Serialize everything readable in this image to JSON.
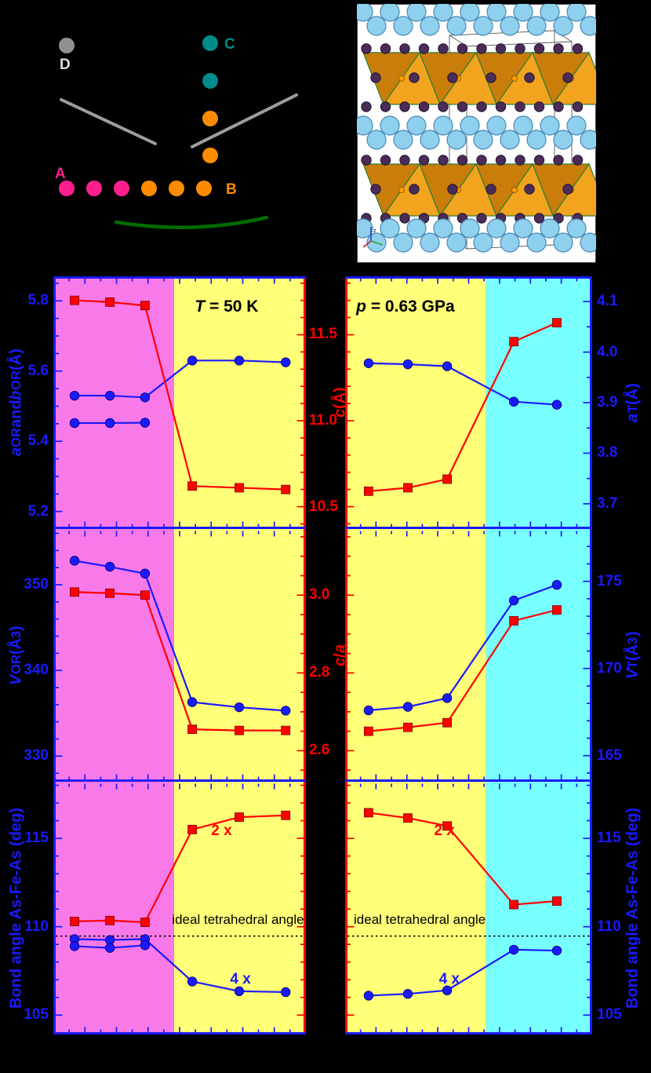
{
  "schematic": {
    "labels": {
      "A": "A",
      "B": "B",
      "C": "C",
      "D": "D"
    },
    "colors": {
      "a_dot": "#ff1f8f",
      "b_dot": "#ff8c00",
      "c_dot": "#008b8b",
      "d_dot": "#909090",
      "d_label": "#e0e0e0",
      "line": "#9e9e9e",
      "arc": "#006b00"
    }
  },
  "crystal": {
    "colors": {
      "ca": "#8fd0ee",
      "ca_edge": "#4989b5",
      "as": "#4a2d57",
      "as_edge": "#241233",
      "fe": "#ff9a00",
      "poly_light": "#f2a41f",
      "poly_dark": "#c97d0a",
      "poly_edge": "#2f7d32",
      "cell": "#555555"
    }
  },
  "figure": {
    "palette": {
      "blue": "#1a1aff",
      "red": "#ff0000",
      "magenta": "#f87ae8",
      "yellow": "#ffff78",
      "cyan": "#78ffff"
    }
  },
  "chart_data": {
    "type": "line",
    "rows": [
      {
        "left": {
          "label": "<i>a</i><sub>OR</sub> and <i>b</i><sub>OR</sub> (Å)",
          "ylim": [
            5.15,
            5.87
          ],
          "majors": [
            5.8,
            5.6,
            5.4,
            5.2
          ],
          "labels": [
            "5.8",
            "5.6",
            "5.4",
            "5.2"
          ],
          "minor": 0.05
        },
        "mid": {
          "label": "<i>c</i> (Å)",
          "ylim": [
            10.37,
            11.84
          ],
          "majors": [
            11.5,
            11.0,
            10.5
          ],
          "labels": [
            "11.5",
            "11.0",
            "10.5"
          ],
          "minor": 0.1
        },
        "right": {
          "label": "<i>a</i><sub>T</sub> (Å)",
          "ylim": [
            3.65,
            4.15
          ],
          "majors": [
            4.1,
            4.0,
            3.9,
            3.8,
            3.7
          ],
          "labels": [
            "4.1",
            "4.0",
            "3.9",
            "3.8",
            "3.7"
          ],
          "minor": 0.05
        }
      },
      {
        "left": {
          "label": "<i>V</i><sub>OR</sub> (Å<sup>3</sup>)",
          "ylim": [
            327,
            356.5
          ],
          "majors": [
            350,
            340,
            330
          ],
          "labels": [
            "350",
            "340",
            "330"
          ],
          "minor": 2
        },
        "mid": {
          "label": "<i>c</i>/<i>a</i>",
          "ylim": [
            2.52,
            3.17
          ],
          "majors": [
            3.0,
            2.8,
            2.6
          ],
          "labels": [
            "3.0",
            "2.8",
            "2.6"
          ],
          "minor": 0.05
        },
        "right": {
          "label": "<i>V</i><sub>T</sub> (Å<sup>3</sup>)",
          "ylim": [
            163.5,
            178
          ],
          "majors": [
            175,
            170,
            165
          ],
          "labels": [
            "175",
            "170",
            "165"
          ],
          "minor": 1
        }
      },
      {
        "left": {
          "label": "Bond angle As-Fe-As (deg)",
          "ylim": [
            103.9,
            118.2
          ],
          "majors": [
            115,
            110,
            105
          ],
          "labels": [
            "115",
            "110",
            "105"
          ],
          "minor": 1
        },
        "mid": {
          "label": "",
          "ylim": [
            103.9,
            118.2
          ],
          "majors": [
            115,
            110,
            105
          ],
          "labels": [],
          "minor": 1
        },
        "right": {
          "label": "Bond angle As-Fe-As (deg)",
          "ylim": [
            103.9,
            118.2
          ],
          "majors": [
            115,
            110,
            105
          ],
          "labels": [
            "115",
            "110",
            "105"
          ],
          "minor": 1
        }
      }
    ],
    "panels": [
      {
        "id": "lattice-ab-c-vs-pressure",
        "row": 0,
        "col": 0,
        "regions": [
          {
            "bg": "magenta",
            "from": 0,
            "to": 0.478
          },
          {
            "bg": "yellow",
            "from": 0.478,
            "to": 1
          }
        ],
        "texts": [
          {
            "html": "<i>T</i> = 50 K",
            "color": "#000000",
            "x": 0.56,
            "y": 0.085,
            "size": 21,
            "bold": true
          }
        ],
        "series": [
          {
            "name": "a-OR-then-a-tet",
            "scale": "left",
            "color": "blue",
            "marker": "circle",
            "x": [
              0.084,
              0.224,
              0.363,
              0.55,
              0.736,
              0.92
            ],
            "y": [
              5.53,
              5.53,
              5.525,
              5.63,
              5.63,
              5.625
            ]
          },
          {
            "name": "b-OR",
            "scale": "left",
            "color": "blue",
            "marker": "circle",
            "x": [
              0.084,
              0.224,
              0.363
            ],
            "y": [
              5.452,
              5.452,
              5.453
            ]
          },
          {
            "name": "c-axis",
            "scale": "mid",
            "color": "red",
            "marker": "square",
            "x": [
              0.084,
              0.224,
              0.363,
              0.55,
              0.736,
              0.92
            ],
            "y": [
              11.7,
              11.69,
              11.67,
              10.62,
              10.61,
              10.6
            ]
          }
        ]
      },
      {
        "id": "lattice-a-c-vs-temperature",
        "row": 0,
        "col": 1,
        "regions": [
          {
            "bg": "yellow",
            "from": 0,
            "to": 0.571
          },
          {
            "bg": "cyan",
            "from": 0.571,
            "to": 1
          }
        ],
        "texts": [
          {
            "html": "<i>p</i> = 0.63 GPa",
            "color": "#000000",
            "x": 0.045,
            "y": 0.085,
            "size": 21,
            "bold": true
          }
        ],
        "series": [
          {
            "name": "a-T",
            "scale": "right",
            "color": "blue",
            "marker": "circle",
            "x": [
              0.095,
              0.254,
              0.413,
              0.683,
              0.857
            ],
            "y": [
              3.978,
              3.976,
              3.972,
              3.902,
              3.896
            ]
          },
          {
            "name": "c-axis",
            "scale": "mid",
            "color": "red",
            "marker": "square",
            "x": [
              0.095,
              0.254,
              0.413,
              0.683,
              0.857
            ],
            "y": [
              10.59,
              10.61,
              10.66,
              11.46,
              11.57
            ]
          }
        ]
      },
      {
        "id": "volume-coa-vs-pressure",
        "row": 1,
        "col": 0,
        "regions": [
          {
            "bg": "magenta",
            "from": 0,
            "to": 0.478
          },
          {
            "bg": "yellow",
            "from": 0.478,
            "to": 1
          }
        ],
        "texts": [],
        "series": [
          {
            "name": "V-OR",
            "scale": "left",
            "color": "blue",
            "marker": "circle",
            "x": [
              0.084,
              0.224,
              0.363,
              0.55,
              0.736,
              0.92
            ],
            "y": [
              352.8,
              352.1,
              351.3,
              336.3,
              335.7,
              335.3
            ]
          },
          {
            "name": "c-over-a",
            "scale": "mid",
            "color": "red",
            "marker": "square",
            "x": [
              0.084,
              0.224,
              0.363,
              0.55,
              0.736,
              0.92
            ],
            "y": [
              3.008,
              3.005,
              3.0,
              2.655,
              2.652,
              2.652
            ]
          }
        ]
      },
      {
        "id": "volume-coa-vs-temperature",
        "row": 1,
        "col": 1,
        "regions": [
          {
            "bg": "yellow",
            "from": 0,
            "to": 0.571
          },
          {
            "bg": "cyan",
            "from": 0.571,
            "to": 1
          }
        ],
        "texts": [],
        "series": [
          {
            "name": "V-T",
            "scale": "right",
            "color": "blue",
            "marker": "circle",
            "x": [
              0.095,
              0.254,
              0.413,
              0.683,
              0.857
            ],
            "y": [
              167.6,
              167.8,
              168.3,
              173.9,
              174.8
            ]
          },
          {
            "name": "c-over-a",
            "scale": "mid",
            "color": "red",
            "marker": "square",
            "x": [
              0.095,
              0.254,
              0.413,
              0.683,
              0.857
            ],
            "y": [
              2.65,
              2.66,
              2.672,
              2.934,
              2.962
            ]
          }
        ]
      },
      {
        "id": "bond-angles-vs-pressure",
        "row": 2,
        "col": 0,
        "regions": [
          {
            "bg": "magenta",
            "from": 0,
            "to": 0.478
          },
          {
            "bg": "yellow",
            "from": 0.478,
            "to": 1
          }
        ],
        "hlines": [
          {
            "value": 109.47,
            "scale": "left",
            "color": "#000000",
            "label": "ideal tetrahedral angle"
          }
        ],
        "texts": [
          {
            "html": "2 x",
            "color": "red",
            "x": 0.625,
            "y": 0.165,
            "size": 19,
            "bold": true
          },
          {
            "html": "4 x",
            "color": "blue",
            "x": 0.7,
            "y": 0.75,
            "size": 19,
            "bold": true
          },
          {
            "html": "ideal tetrahedral angle",
            "color": "#000000",
            "x": 0.47,
            "y": 0.52,
            "size": 17,
            "bold": false
          }
        ],
        "series": [
          {
            "name": "angle-2x",
            "scale": "left",
            "color": "red",
            "marker": "square",
            "x": [
              0.084,
              0.224,
              0.363,
              0.55,
              0.736,
              0.92
            ],
            "y": [
              110.3,
              110.35,
              110.25,
              115.5,
              116.2,
              116.3
            ]
          },
          {
            "name": "angle-4x-upper",
            "scale": "left",
            "color": "blue",
            "marker": "circle",
            "x": [
              0.084,
              0.224,
              0.363,
              0.55,
              0.736,
              0.92
            ],
            "y": [
              109.3,
              109.25,
              109.3,
              106.9,
              106.35,
              106.3
            ]
          },
          {
            "name": "angle-4x-lower",
            "scale": "left",
            "color": "blue",
            "marker": "circle",
            "x": [
              0.084,
              0.224,
              0.363
            ],
            "y": [
              108.9,
              108.8,
              108.95
            ]
          }
        ]
      },
      {
        "id": "bond-angles-vs-temperature",
        "row": 2,
        "col": 1,
        "regions": [
          {
            "bg": "yellow",
            "from": 0,
            "to": 0.571
          },
          {
            "bg": "cyan",
            "from": 0.571,
            "to": 1
          }
        ],
        "hlines": [
          {
            "value": 109.47,
            "scale": "right",
            "color": "#000000",
            "label": "ideal tetrahedral angle"
          }
        ],
        "texts": [
          {
            "html": "2 x",
            "color": "red",
            "x": 0.36,
            "y": 0.165,
            "size": 19,
            "bold": true
          },
          {
            "html": "4 x",
            "color": "blue",
            "x": 0.38,
            "y": 0.75,
            "size": 19,
            "bold": true
          },
          {
            "html": "ideal tetrahedral angle",
            "color": "#000000",
            "x": 0.035,
            "y": 0.52,
            "size": 17,
            "bold": false
          }
        ],
        "series": [
          {
            "name": "angle-2x",
            "scale": "right",
            "color": "red",
            "marker": "square",
            "x": [
              0.095,
              0.254,
              0.413,
              0.683,
              0.857
            ],
            "y": [
              116.45,
              116.15,
              115.7,
              111.25,
              111.45
            ]
          },
          {
            "name": "angle-4x",
            "scale": "right",
            "color": "blue",
            "marker": "circle",
            "x": [
              0.095,
              0.254,
              0.413,
              0.683,
              0.857
            ],
            "y": [
              106.1,
              106.2,
              106.4,
              108.7,
              108.65
            ]
          }
        ]
      }
    ]
  }
}
